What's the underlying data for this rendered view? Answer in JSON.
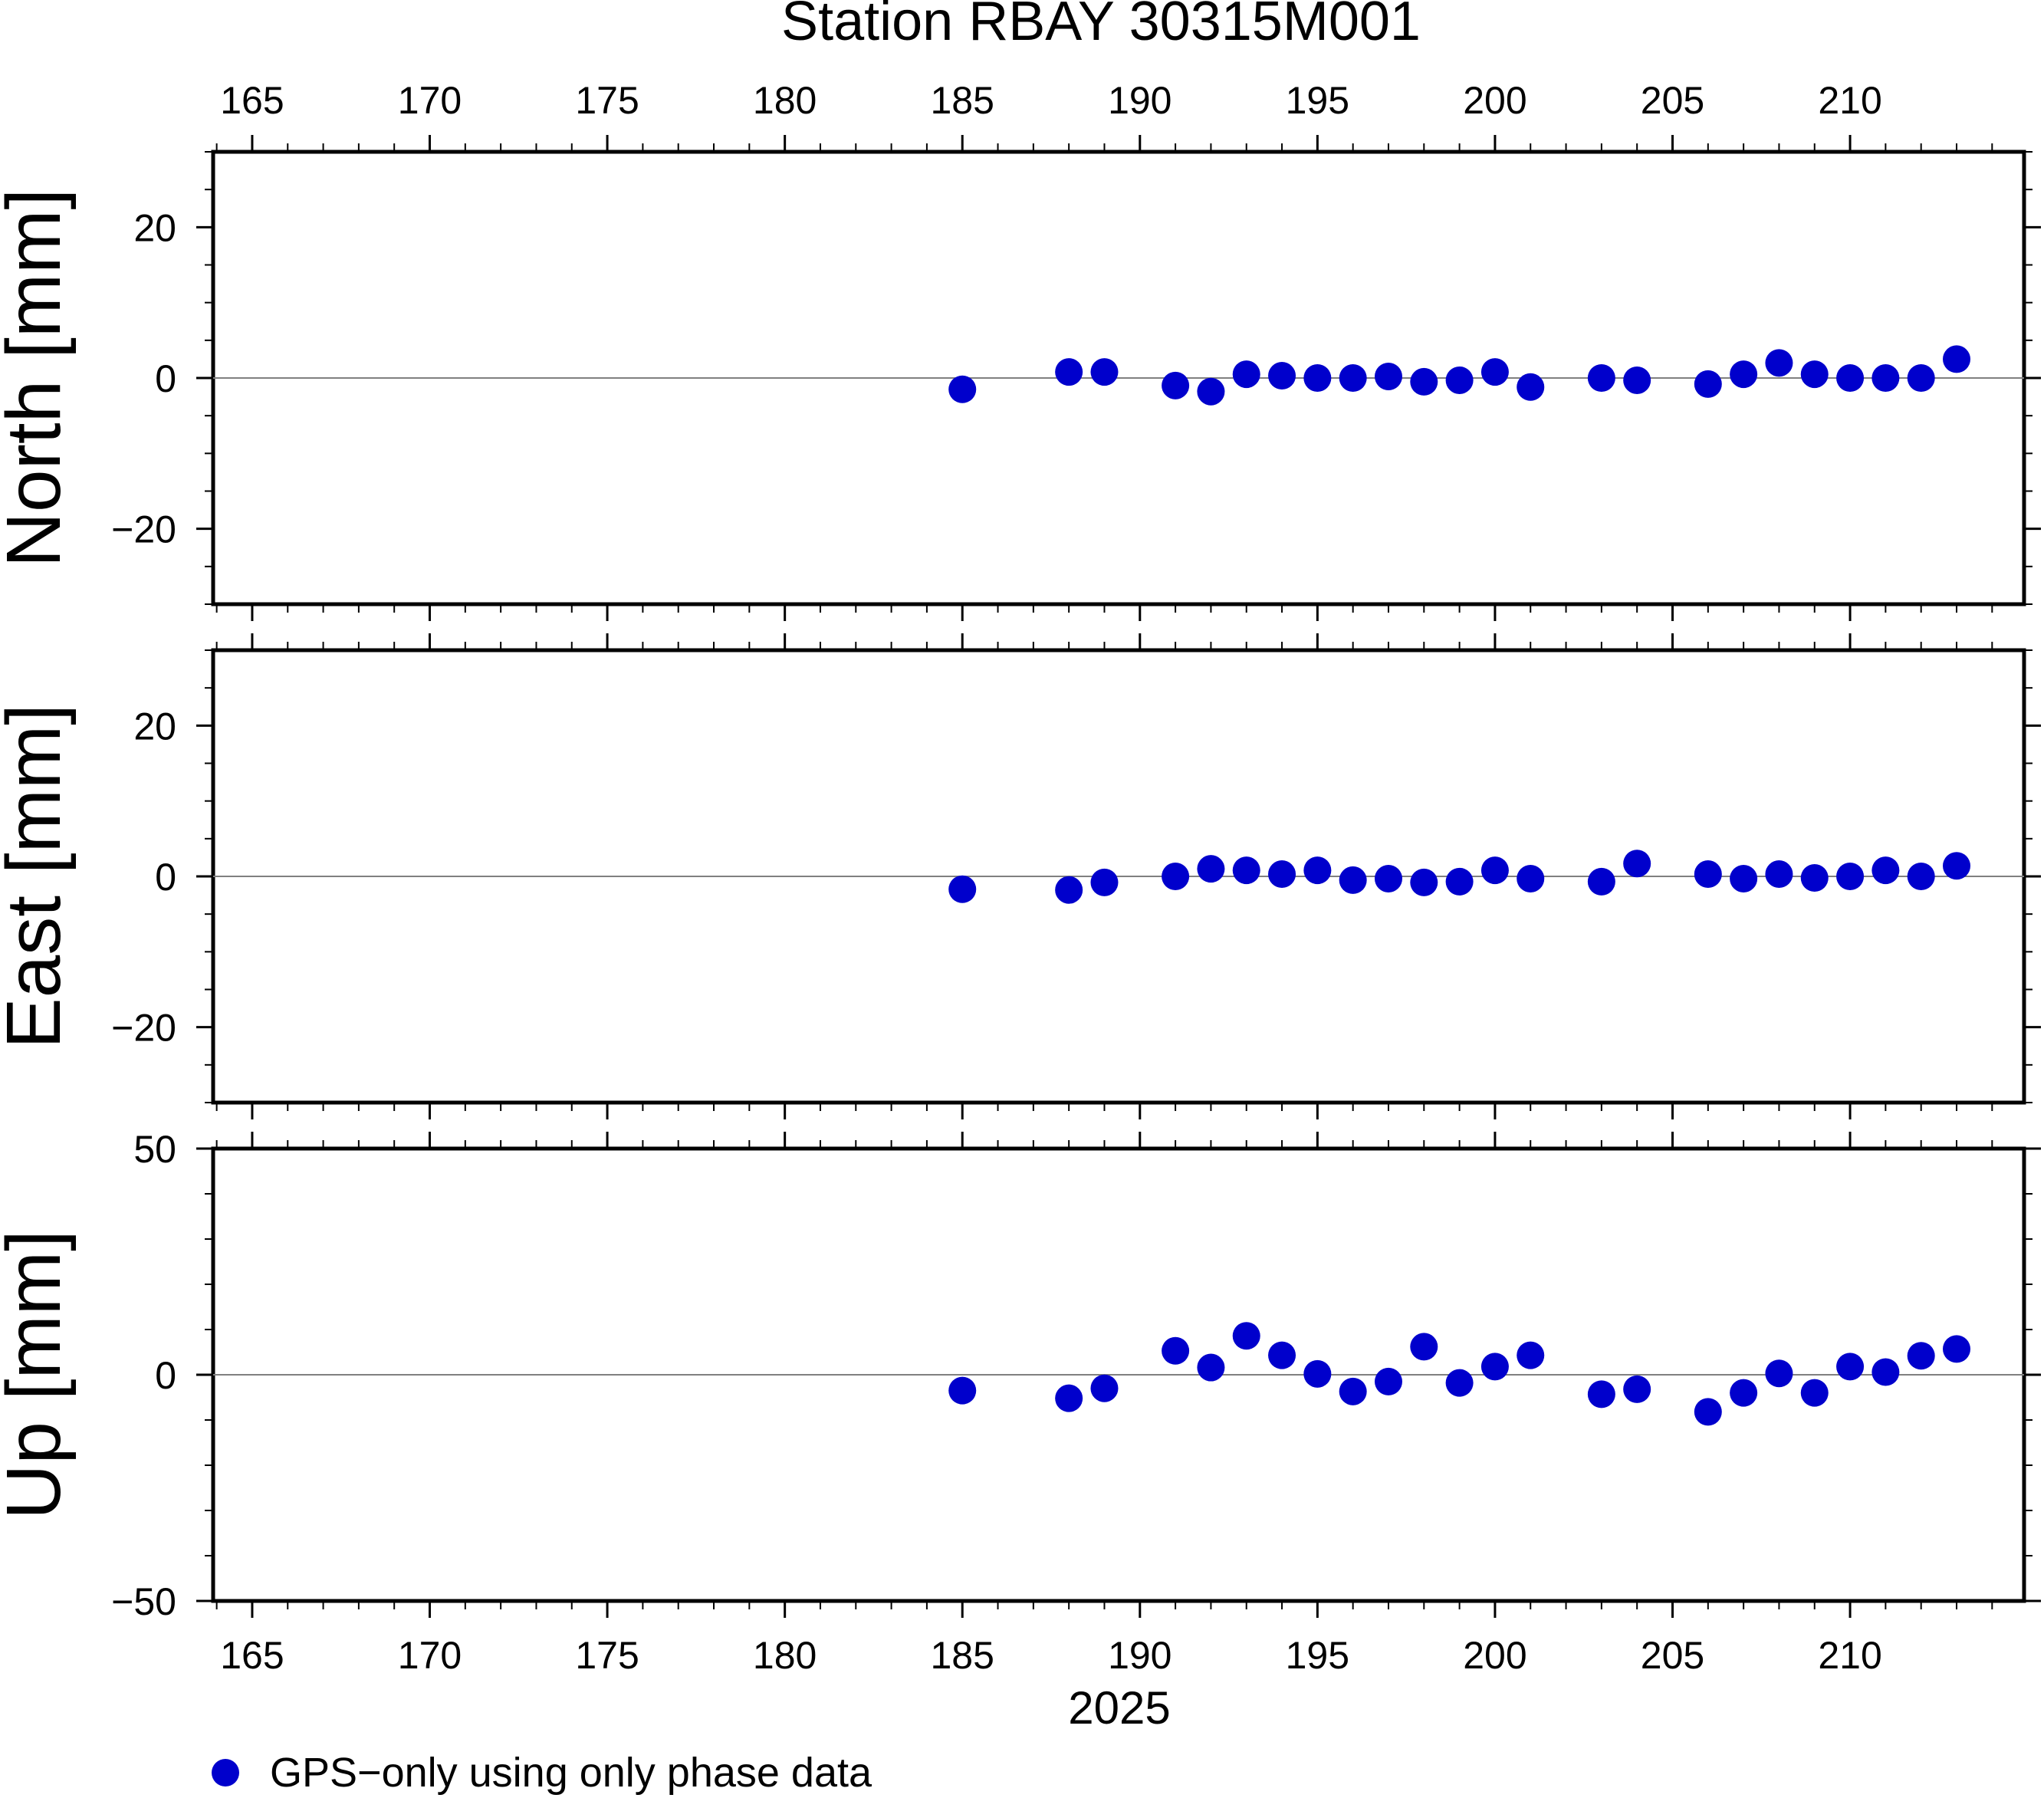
{
  "chart_data": {
    "type": "scatter",
    "title": "Station RBAY 30315M001",
    "xlabel": "2025",
    "xlim": [
      163.9,
      214.9
    ],
    "x_ticks": [
      165,
      170,
      175,
      180,
      185,
      190,
      195,
      200,
      205,
      210
    ],
    "x_tick_labels": [
      "165",
      "170",
      "175",
      "180",
      "185",
      "190",
      "195",
      "200",
      "205",
      "210"
    ],
    "marker_color": "#0000cc",
    "zero_line": true,
    "legend": {
      "label": "GPS−only using only phase data",
      "placement": "bottom-left"
    },
    "x": [
      185,
      188,
      189,
      191,
      192,
      193,
      194,
      195,
      196,
      197,
      198,
      199,
      200,
      201,
      203,
      204,
      206,
      207,
      208,
      209,
      210,
      211,
      212,
      213
    ],
    "panels": [
      {
        "ylabel": "North [mm]",
        "ylim": [
          -30,
          30
        ],
        "y_ticks": [
          -20,
          0,
          20
        ],
        "y_tick_labels": [
          "−20",
          "0",
          "20"
        ],
        "values": [
          -1.5,
          0.8,
          0.8,
          -1.0,
          -1.8,
          0.5,
          0.3,
          0.0,
          0.0,
          0.2,
          -0.5,
          -0.3,
          0.8,
          -1.2,
          0.0,
          -0.3,
          -0.8,
          0.5,
          2.0,
          0.5,
          0.0,
          0.0,
          0.0,
          2.5
        ]
      },
      {
        "ylabel": "East [mm]",
        "ylim": [
          -30,
          30
        ],
        "y_ticks": [
          -20,
          0,
          20
        ],
        "y_tick_labels": [
          "−20",
          "0",
          "20"
        ],
        "values": [
          -1.7,
          -1.8,
          -0.8,
          0.0,
          1.0,
          0.8,
          0.3,
          0.8,
          -0.5,
          -0.3,
          -0.8,
          -0.7,
          0.8,
          -0.3,
          -0.7,
          1.7,
          0.3,
          -0.3,
          0.3,
          -0.2,
          0.0,
          0.8,
          0.0,
          1.4
        ]
      },
      {
        "ylabel": "Up [mm]",
        "ylim": [
          -50,
          50
        ],
        "y_ticks": [
          -50,
          0,
          50
        ],
        "y_tick_labels": [
          "−50",
          "0",
          "50"
        ],
        "values": [
          -3.5,
          -5.2,
          -3.0,
          5.3,
          1.6,
          8.6,
          4.3,
          0.2,
          -3.7,
          -1.5,
          6.2,
          -1.8,
          1.8,
          4.3,
          -4.3,
          -3.2,
          -8.2,
          -4.0,
          0.3,
          -4.0,
          1.8,
          0.6,
          4.2,
          5.7
        ]
      }
    ]
  }
}
